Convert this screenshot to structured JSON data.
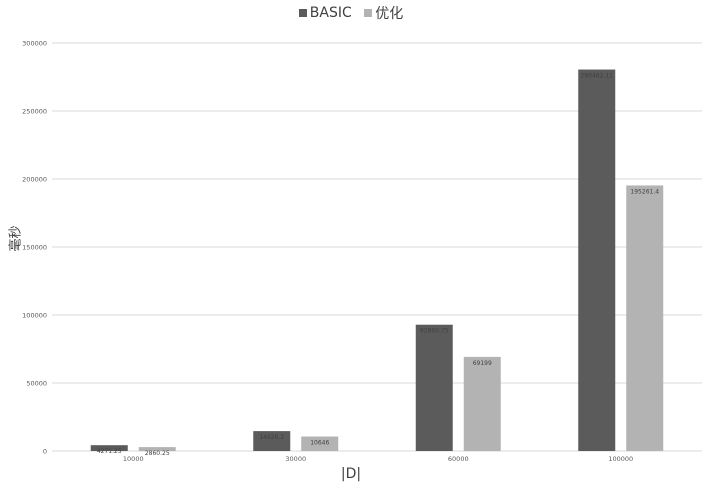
{
  "chart_data": {
    "type": "bar",
    "categories": [
      "10000",
      "30000",
      "60000",
      "100000"
    ],
    "series": [
      {
        "name": "BASIC",
        "color": "#5b5b5b",
        "values": [
          4271.25,
          14626.2,
          92860.75,
          280482.1
        ],
        "labels": [
          "4271.25",
          "14626.2",
          "92860.75",
          "280482.11"
        ]
      },
      {
        "name": "优化",
        "color": "#b3b3b3",
        "values": [
          2860.25,
          10646,
          69199,
          195261.4
        ],
        "labels": [
          "2860.25",
          "10646",
          "69199",
          "195261.4"
        ]
      }
    ],
    "xlabel": "|D|",
    "ylabel": "毫秒",
    "ylim": [
      0,
      300000
    ],
    "yticks": [
      "0",
      "50000",
      "100000",
      "150000",
      "200000",
      "250000",
      "300000"
    ],
    "grid": true,
    "legend_position": "top"
  }
}
